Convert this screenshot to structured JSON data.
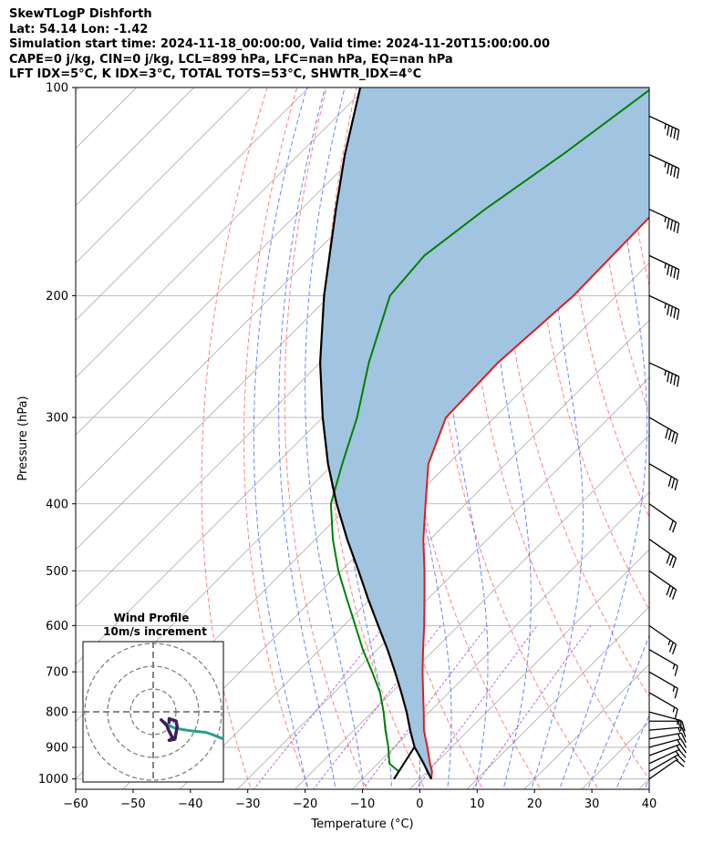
{
  "header": {
    "line1": "SkewTLogP Dishforth",
    "line2": "Lat: 54.14   Lon: -1.42",
    "line3": "Simulation start time: 2024-11-18_00:00:00, Valid time: 2024-11-20T15:00:00.00",
    "line4": "CAPE=0 j/kg, CIN=0 j/kg, LCL=899 hPa, LFC=nan hPa, EQ=nan hPa",
    "line5": "LFT IDX=5°C, K IDX=3°C, TOTAL TOTS=53°C, SHWTR_IDX=4°C"
  },
  "chart_data": {
    "type": "skewt-logp",
    "xlabel": "Temperature (°C)",
    "ylabel": "Pressure (hPa)",
    "xlim": [
      -60,
      40
    ],
    "ylim": [
      1035,
      100
    ],
    "y_scale": "log",
    "grid": true,
    "x_ticks": [
      "−60",
      "−50",
      "−40",
      "−30",
      "−20",
      "−10",
      "0",
      "10",
      "20",
      "30",
      "40"
    ],
    "y_ticks": [
      {
        "p": 1000,
        "label": "1000"
      },
      {
        "p": 900,
        "label": "900"
      },
      {
        "p": 800,
        "label": "800"
      },
      {
        "p": 700,
        "label": "700"
      },
      {
        "p": 600,
        "label": "600"
      },
      {
        "p": 500,
        "label": "500"
      },
      {
        "p": 400,
        "label": "400"
      },
      {
        "p": 300,
        "label": "300"
      },
      {
        "p": 200,
        "label": "200"
      },
      {
        "p": 100,
        "label": "100"
      }
    ],
    "colors": {
      "temperature": "#e31a1c",
      "dewpoint": "#008000",
      "parcel": "#000000",
      "cin_shade": "#a1c5e0",
      "dry_adiabat": "#ff6b6b",
      "moist_adiabat": "#4466ff",
      "mixing_ratio": "#9933cc",
      "isotherm": "#aaaaaa"
    },
    "temperature": [
      {
        "p": 1000,
        "t": 2.0
      },
      {
        "p": 975,
        "t": 0.8
      },
      {
        "p": 950,
        "t": -0.9
      },
      {
        "p": 900,
        "t": -4.2
      },
      {
        "p": 850,
        "t": -7.8
      },
      {
        "p": 800,
        "t": -11.0
      },
      {
        "p": 750,
        "t": -14.5
      },
      {
        "p": 700,
        "t": -18.2
      },
      {
        "p": 650,
        "t": -22.0
      },
      {
        "p": 600,
        "t": -26.0
      },
      {
        "p": 550,
        "t": -30.5
      },
      {
        "p": 500,
        "t": -35.5
      },
      {
        "p": 450,
        "t": -41.2
      },
      {
        "p": 400,
        "t": -47.0
      },
      {
        "p": 350,
        "t": -53.5
      },
      {
        "p": 300,
        "t": -58.5
      },
      {
        "p": 250,
        "t": -59.0
      },
      {
        "p": 200,
        "t": -57.5
      },
      {
        "p": 150,
        "t": -58.0
      },
      {
        "p": 125,
        "t": -60.0
      },
      {
        "p": 100,
        "t": -63.0
      }
    ],
    "dewpoint": [
      {
        "p": 1000,
        "t": -4.5
      },
      {
        "p": 975,
        "t": -5.0
      },
      {
        "p": 950,
        "t": -8.0
      },
      {
        "p": 900,
        "t": -11.0
      },
      {
        "p": 850,
        "t": -14.5
      },
      {
        "p": 800,
        "t": -18.0
      },
      {
        "p": 750,
        "t": -22.0
      },
      {
        "p": 700,
        "t": -27.0
      },
      {
        "p": 650,
        "t": -32.5
      },
      {
        "p": 600,
        "t": -38.0
      },
      {
        "p": 550,
        "t": -44.0
      },
      {
        "p": 500,
        "t": -50.5
      },
      {
        "p": 450,
        "t": -57.0
      },
      {
        "p": 400,
        "t": -63.5
      },
      {
        "p": 350,
        "t": -68.5
      },
      {
        "p": 300,
        "t": -74.0
      },
      {
        "p": 250,
        "t": -81.5
      },
      {
        "p": 200,
        "t": -89.5
      },
      {
        "p": 175,
        "t": -90.5
      },
      {
        "p": 150,
        "t": -88.0
      },
      {
        "p": 125,
        "t": -84.0
      },
      {
        "p": 100,
        "t": -80.0
      }
    ],
    "parcel": [
      {
        "p": 1000,
        "t": 2.0
      },
      {
        "p": 975,
        "t": 0.0
      },
      {
        "p": 950,
        "t": -2.0
      },
      {
        "p": 899,
        "t": -6.5
      },
      {
        "p": 850,
        "t": -10.2
      },
      {
        "p": 800,
        "t": -14.0
      },
      {
        "p": 750,
        "t": -18.3
      },
      {
        "p": 700,
        "t": -23.0
      },
      {
        "p": 650,
        "t": -28.2
      },
      {
        "p": 600,
        "t": -34.0
      },
      {
        "p": 550,
        "t": -40.3
      },
      {
        "p": 500,
        "t": -47.0
      },
      {
        "p": 450,
        "t": -54.5
      },
      {
        "p": 400,
        "t": -62.5
      },
      {
        "p": 350,
        "t": -71.0
      },
      {
        "p": 300,
        "t": -80.0
      },
      {
        "p": 250,
        "t": -90.0
      },
      {
        "p": 200,
        "t": -101.0
      },
      {
        "p": 150,
        "t": -114.0
      },
      {
        "p": 125,
        "t": -122.0
      },
      {
        "p": 100,
        "t": -131.0
      }
    ],
    "parcel_surface_segment": [
      {
        "p": 1000,
        "t": -4.5
      },
      {
        "p": 899,
        "t": -6.5
      }
    ],
    "wind_barbs": [
      {
        "p": 1000,
        "dir": 235,
        "kt": 12
      },
      {
        "p": 975,
        "dir": 240,
        "kt": 15
      },
      {
        "p": 950,
        "dir": 245,
        "kt": 15
      },
      {
        "p": 925,
        "dir": 250,
        "kt": 15
      },
      {
        "p": 900,
        "dir": 255,
        "kt": 15
      },
      {
        "p": 875,
        "dir": 260,
        "kt": 15
      },
      {
        "p": 850,
        "dir": 265,
        "kt": 15
      },
      {
        "p": 825,
        "dir": 270,
        "kt": 15
      },
      {
        "p": 800,
        "dir": 285,
        "kt": 15
      },
      {
        "p": 750,
        "dir": 300,
        "kt": 15
      },
      {
        "p": 700,
        "dir": 300,
        "kt": 15
      },
      {
        "p": 650,
        "dir": 300,
        "kt": 15
      },
      {
        "p": 600,
        "dir": 305,
        "kt": 25
      },
      {
        "p": 500,
        "dir": 305,
        "kt": 30
      },
      {
        "p": 450,
        "dir": 305,
        "kt": 30
      },
      {
        "p": 400,
        "dir": 305,
        "kt": 20
      },
      {
        "p": 350,
        "dir": 300,
        "kt": 30
      },
      {
        "p": 300,
        "dir": 300,
        "kt": 40
      },
      {
        "p": 250,
        "dir": 295,
        "kt": 45
      },
      {
        "p": 200,
        "dir": 295,
        "kt": 45
      },
      {
        "p": 175,
        "dir": 295,
        "kt": 45
      },
      {
        "p": 150,
        "dir": 295,
        "kt": 45
      },
      {
        "p": 125,
        "dir": 295,
        "kt": 45
      },
      {
        "p": 110,
        "dir": 295,
        "kt": 45
      }
    ],
    "inset": {
      "title": "Wind Profile",
      "subtitle": "10m/s increment",
      "rings_ms": [
        10,
        20,
        30
      ],
      "hodograph": [
        {
          "u": 3.5,
          "v": -3.5
        },
        {
          "u": 5.5,
          "v": -5.0
        },
        {
          "u": 9.0,
          "v": -7.0
        },
        {
          "u": 13.0,
          "v": -7.8
        },
        {
          "u": 18.0,
          "v": -8.5
        },
        {
          "u": 23.0,
          "v": -9.0
        },
        {
          "u": 26.0,
          "v": -10.0
        },
        {
          "u": 31.0,
          "v": -12.0
        }
      ],
      "hodograph_upper": [
        {
          "u": 3.5,
          "v": -3.5
        },
        {
          "u": 6.0,
          "v": -6.0
        },
        {
          "u": 6.5,
          "v": -7.5
        },
        {
          "u": 8.5,
          "v": -11.5
        },
        {
          "u": 7.0,
          "v": -12.5
        },
        {
          "u": 9.5,
          "v": -12.0
        },
        {
          "u": 10.5,
          "v": -6.5
        },
        {
          "u": 10.0,
          "v": -4.0
        },
        {
          "u": 7.0,
          "v": -3.0
        },
        {
          "u": 7.0,
          "v": -4.5
        }
      ]
    }
  }
}
